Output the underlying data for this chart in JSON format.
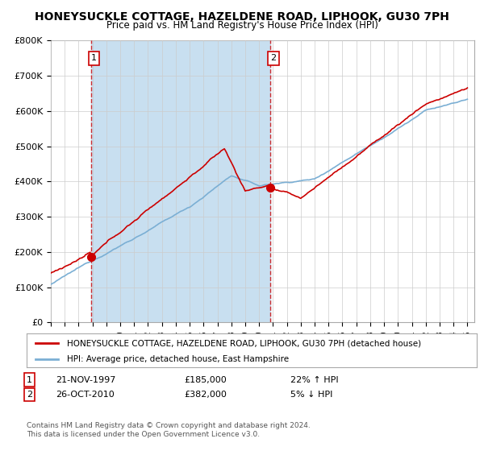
{
  "title": "HONEYSUCKLE COTTAGE, HAZELDENE ROAD, LIPHOOK, GU30 7PH",
  "subtitle": "Price paid vs. HM Land Registry's House Price Index (HPI)",
  "ylim": [
    0,
    800000
  ],
  "yticks": [
    0,
    100000,
    200000,
    300000,
    400000,
    500000,
    600000,
    700000,
    800000
  ],
  "ytick_labels": [
    "£0",
    "£100K",
    "£200K",
    "£300K",
    "£400K",
    "£500K",
    "£600K",
    "£700K",
    "£800K"
  ],
  "sale1_year": 1997.9,
  "sale1_price": 185000,
  "sale1_label": "1",
  "sale2_year": 2010.82,
  "sale2_price": 382000,
  "sale2_label": "2",
  "line_color_property": "#cc0000",
  "line_color_hpi": "#7bafd4",
  "fill_color_hpi": "#c8dff0",
  "dot_color": "#cc0000",
  "dashed_color": "#cc0000",
  "legend_property": "HONEYSUCKLE COTTAGE, HAZELDENE ROAD, LIPHOOK, GU30 7PH (detached house)",
  "legend_hpi": "HPI: Average price, detached house, East Hampshire",
  "footnote": "Contains HM Land Registry data © Crown copyright and database right 2024.\nThis data is licensed under the Open Government Licence v3.0.",
  "bg_color": "#ffffff",
  "grid_color": "#cccccc"
}
